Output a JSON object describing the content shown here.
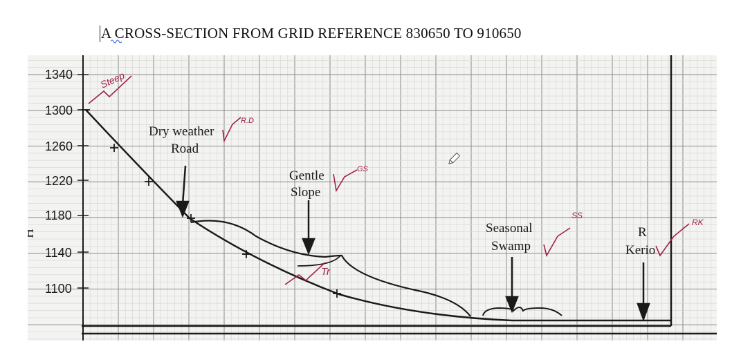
{
  "title": "A CROSS-SECTION FROM GRID REFERENCE 830650 TO 910650",
  "y_axis": {
    "label": "H",
    "ticks": [
      "1340",
      "1300",
      "1260",
      "1220",
      "1180",
      "1140",
      "1100"
    ]
  },
  "annotations": {
    "dry_weather_road_line1": "Dry weather",
    "dry_weather_road_line2": "Road",
    "gentle_slope_line1": "Gentle",
    "gentle_slope_line2": "Slope",
    "seasonal_swamp_line1": "Seasonal",
    "seasonal_swamp_line2": "Swamp",
    "river_line1": "R",
    "river_line2": "Kerio"
  },
  "marks": {
    "steep": "Steep",
    "rd": "R.D",
    "gs": "GS",
    "tr": "Tr",
    "ss": "SS",
    "rk": "RK"
  },
  "colors": {
    "ink": "#1a1a1a",
    "marker": "#a0204a",
    "grid_fine": "#d4d4d0",
    "grid_major": "#8a8a86"
  }
}
